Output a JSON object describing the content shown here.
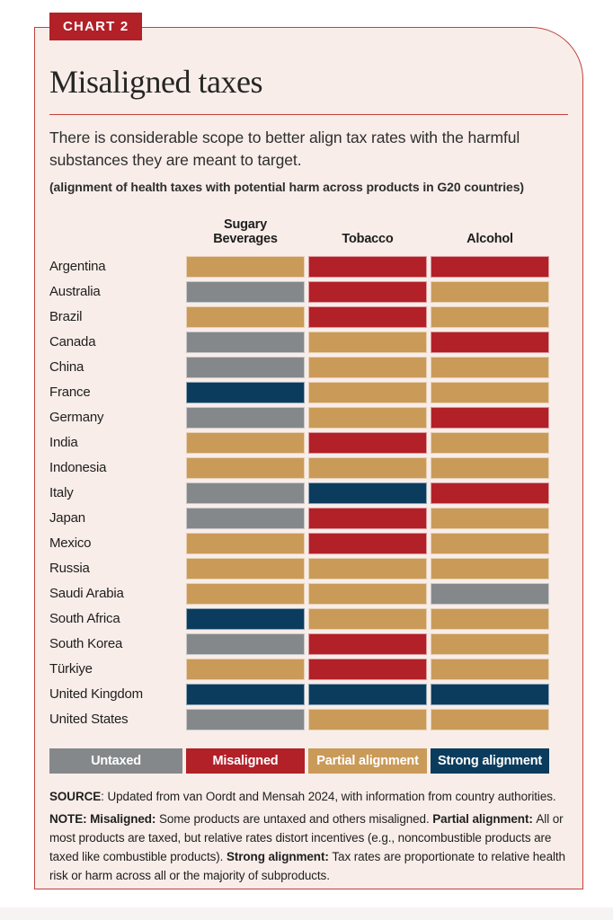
{
  "badge": "CHART 2",
  "title": "Misaligned taxes",
  "subtitle": "There is considerable scope to better align tax rates with the harmful substances they are meant to target.",
  "subnote": "(alignment of health taxes with potential harm across products in G20 countries)",
  "colors": {
    "card_background": "#F8EDE9",
    "border_red": "#C1413C",
    "untaxed": "#85888B",
    "misaligned": "#B22028",
    "partial": "#CA9A58",
    "strong": "#0B3C5D"
  },
  "chart_data": {
    "type": "heatmap",
    "title": "Misaligned taxes",
    "subtitle": "(alignment of health taxes with potential harm across products in G20 countries)",
    "columns": [
      "Sugary Beverages",
      "Tobacco",
      "Alcohol"
    ],
    "value_scale": [
      "Untaxed",
      "Misaligned",
      "Partial alignment",
      "Strong alignment"
    ],
    "rows": [
      {
        "country": "Argentina",
        "values": [
          "partial",
          "misaligned",
          "misaligned"
        ]
      },
      {
        "country": "Australia",
        "values": [
          "untaxed",
          "misaligned",
          "partial"
        ]
      },
      {
        "country": "Brazil",
        "values": [
          "partial",
          "misaligned",
          "partial"
        ]
      },
      {
        "country": "Canada",
        "values": [
          "untaxed",
          "partial",
          "misaligned"
        ]
      },
      {
        "country": "China",
        "values": [
          "untaxed",
          "partial",
          "partial"
        ]
      },
      {
        "country": "France",
        "values": [
          "strong",
          "partial",
          "partial"
        ]
      },
      {
        "country": "Germany",
        "values": [
          "untaxed",
          "partial",
          "misaligned"
        ]
      },
      {
        "country": "India",
        "values": [
          "partial",
          "misaligned",
          "partial"
        ]
      },
      {
        "country": "Indonesia",
        "values": [
          "partial",
          "partial",
          "partial"
        ]
      },
      {
        "country": "Italy",
        "values": [
          "untaxed",
          "strong",
          "misaligned"
        ]
      },
      {
        "country": "Japan",
        "values": [
          "untaxed",
          "misaligned",
          "partial"
        ]
      },
      {
        "country": "Mexico",
        "values": [
          "partial",
          "misaligned",
          "partial"
        ]
      },
      {
        "country": "Russia",
        "values": [
          "partial",
          "partial",
          "partial"
        ]
      },
      {
        "country": "Saudi Arabia",
        "values": [
          "partial",
          "partial",
          "untaxed"
        ]
      },
      {
        "country": "South Africa",
        "values": [
          "strong",
          "partial",
          "partial"
        ]
      },
      {
        "country": "South Korea",
        "values": [
          "untaxed",
          "misaligned",
          "partial"
        ]
      },
      {
        "country": "Türkiye",
        "values": [
          "partial",
          "misaligned",
          "partial"
        ]
      },
      {
        "country": "United Kingdom",
        "values": [
          "strong",
          "strong",
          "strong"
        ]
      },
      {
        "country": "United States",
        "values": [
          "untaxed",
          "partial",
          "partial"
        ]
      }
    ],
    "legend_position": "bottom"
  },
  "legend": [
    {
      "label": "Untaxed",
      "key": "untaxed"
    },
    {
      "label": "Misaligned",
      "key": "misaligned"
    },
    {
      "label": "Partial alignment",
      "key": "partial"
    },
    {
      "label": "Strong alignment",
      "key": "strong"
    }
  ],
  "source": {
    "label": "SOURCE",
    "text": ": Updated from van Oordt and Mensah 2024, with information from country authorities."
  },
  "note_segments": [
    {
      "text": "NOTE: ",
      "bold": true
    },
    {
      "text": "Misaligned: ",
      "bold": true
    },
    {
      "text": "Some products are untaxed and others misaligned. ",
      "bold": false
    },
    {
      "text": "Partial alignment: ",
      "bold": true
    },
    {
      "text": "All or most products are taxed, but relative rates distort incentives (e.g., noncombustible products are taxed like combustible products).  ",
      "bold": false
    },
    {
      "text": "Strong alignment: ",
      "bold": true
    },
    {
      "text": "Tax rates are proportionate to relative health risk or harm across all or the majority of subproducts.",
      "bold": false
    }
  ]
}
